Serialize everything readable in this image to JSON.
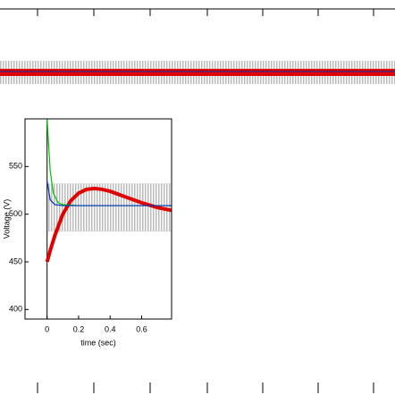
{
  "chart_data": {
    "type": "line",
    "xlabel": "time (sec)",
    "ylabel": "Voltage (V)",
    "xlim": [
      -0.14,
      0.79
    ],
    "ylim": [
      390,
      600
    ],
    "xticks": [
      0,
      0.2,
      0.4,
      0.6
    ],
    "yticks": [
      400,
      450,
      500,
      550
    ],
    "band": {
      "color": "#cfcfcf",
      "x": [
        0,
        0.79
      ],
      "low": 482,
      "high": 532
    },
    "series": [
      {
        "color": "#e00000",
        "x": [
          0,
          0.02,
          0.05,
          0.1,
          0.15,
          0.2,
          0.25,
          0.3,
          0.35,
          0.4,
          0.5,
          0.6,
          0.7,
          0.79
        ],
        "values": [
          450,
          462,
          478,
          500,
          514,
          522,
          526,
          527,
          526,
          524,
          518,
          512,
          507,
          504
        ]
      },
      {
        "color": "#00c000",
        "x": [
          0,
          0.02,
          0.04,
          0.07,
          0.1,
          0.2,
          0.79
        ],
        "values": [
          600,
          545,
          522,
          512,
          510,
          509,
          509
        ]
      },
      {
        "color": "#0030c0",
        "x": [
          0,
          0.02,
          0.05,
          0.1,
          0.79
        ],
        "values": [
          535,
          515,
          510,
          509,
          509
        ]
      }
    ]
  }
}
